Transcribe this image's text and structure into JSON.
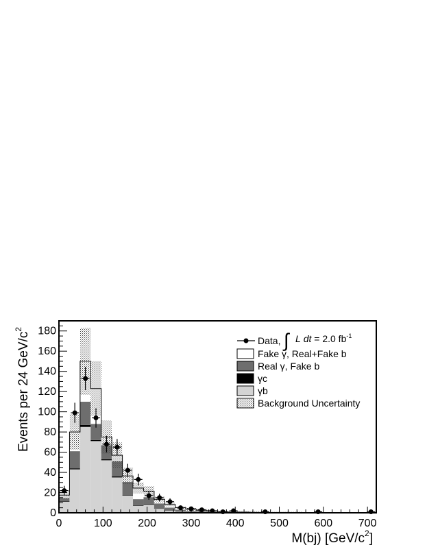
{
  "chart_data": {
    "type": "bar",
    "stacked": true,
    "xlabel": "M(bj) [GeV/c",
    "xlabel_sup": "2",
    "xlabel_close": "]",
    "ylabel": "Events per 24 GeV/c",
    "ylabel_sup": "2",
    "xlim": [
      0,
      720
    ],
    "ylim": [
      0,
      190
    ],
    "xticks": [
      0,
      100,
      200,
      300,
      400,
      500,
      600,
      700
    ],
    "yticks": [
      0,
      20,
      40,
      60,
      80,
      100,
      120,
      140,
      160,
      180
    ],
    "bin_edges": [
      0,
      24,
      48,
      72,
      96,
      120,
      144,
      168,
      192,
      216,
      240,
      264,
      288,
      312,
      336,
      360,
      384,
      408,
      432,
      456,
      480,
      504,
      528,
      552,
      576,
      600,
      624,
      648,
      672,
      696,
      720
    ],
    "series": [
      {
        "name": "γb",
        "color": "#d3d3d3",
        "values": [
          11,
          43,
          85,
          71,
          52,
          35,
          17,
          7,
          8,
          4,
          2,
          1,
          1,
          0.5,
          0.3,
          0.2,
          0.1,
          0.1,
          0,
          0,
          0,
          0,
          0,
          0,
          0,
          0,
          0,
          0,
          0,
          0
        ]
      },
      {
        "name": "γc",
        "color": "#000000",
        "values": [
          0.5,
          1,
          2,
          1,
          1,
          1,
          0.5,
          0.5,
          0.5,
          0.3,
          0.2,
          0.1,
          0,
          0,
          0,
          0,
          0,
          0,
          0,
          0,
          0,
          0,
          0,
          0,
          0,
          0,
          0,
          0,
          0,
          0
        ]
      },
      {
        "name": "Real γ, Fake b",
        "color": "#6e6e6e",
        "values": [
          3,
          17,
          23,
          16,
          14,
          15,
          13,
          6,
          7,
          5,
          3,
          2,
          1,
          1,
          0.5,
          0.3,
          0.2,
          0.2,
          0.1,
          0,
          0,
          0,
          0,
          0,
          0,
          0,
          0,
          0,
          0,
          0
        ]
      },
      {
        "name": "Fake γ, Real+Fake b",
        "color": "#ffffff",
        "values": [
          3,
          19,
          40,
          35,
          8,
          6,
          6,
          11,
          6,
          4,
          3,
          2,
          1.5,
          1,
          0.8,
          0.5,
          0.4,
          0.3,
          0.3,
          0.2,
          0.1,
          0.1,
          0.1,
          0,
          0,
          0,
          0,
          0,
          0,
          0
        ]
      }
    ],
    "uncertainty": {
      "name": "Background Uncertainty",
      "fraction": 0.22
    },
    "data_points": {
      "name": "Data,",
      "x": [
        12,
        36,
        60,
        84,
        108,
        132,
        156,
        180,
        204,
        228,
        252,
        276,
        300,
        324,
        348,
        372,
        396,
        420,
        444,
        468,
        492,
        516,
        540,
        564,
        588,
        612,
        636,
        660,
        684,
        708
      ],
      "y": [
        22,
        99,
        133,
        94,
        68,
        65,
        42,
        33,
        17,
        15,
        11,
        5,
        4,
        3,
        2,
        1,
        2,
        0,
        0,
        1,
        0,
        0,
        0,
        0,
        1,
        0,
        0,
        0,
        0,
        1
      ]
    },
    "legend": {
      "placement": "top-right",
      "data_label": "Data,",
      "lumi_L": "L",
      "lumi_dt": "dt",
      "lumi_eq": "= 2.0 fb",
      "lumi_sup": "-1"
    }
  }
}
